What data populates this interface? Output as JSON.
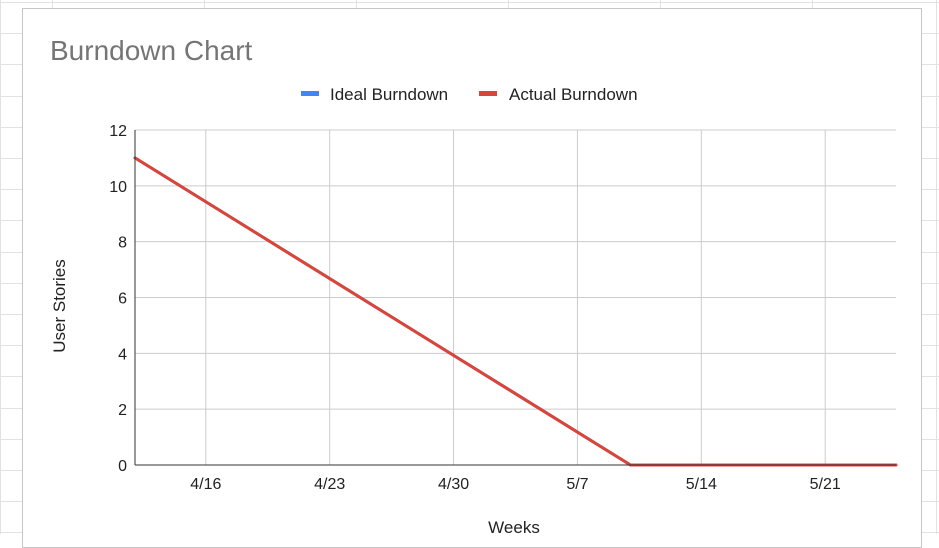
{
  "chart_data": {
    "type": "line",
    "title": "Burndown Chart",
    "xlabel": "Weeks",
    "ylabel": "User Stories",
    "x_ticks": [
      "4/16",
      "4/23",
      "4/30",
      "5/7",
      "5/14",
      "5/21"
    ],
    "x_range": [
      "4/12",
      "5/25"
    ],
    "ylim": [
      0,
      12
    ],
    "y_ticks": [
      "0",
      "2",
      "4",
      "6",
      "8",
      "10",
      "12"
    ],
    "grid": true,
    "legend_position": "top",
    "series": [
      {
        "name": "Ideal Burndown",
        "color": "#4285f4",
        "x": [
          "4/12",
          "5/10",
          "5/25"
        ],
        "values": [
          11,
          0,
          0
        ]
      },
      {
        "name": "Actual Burndown",
        "color": "#db4437",
        "x": [
          "4/12",
          "5/10",
          "5/25"
        ],
        "values": [
          11,
          0,
          0
        ]
      }
    ]
  }
}
